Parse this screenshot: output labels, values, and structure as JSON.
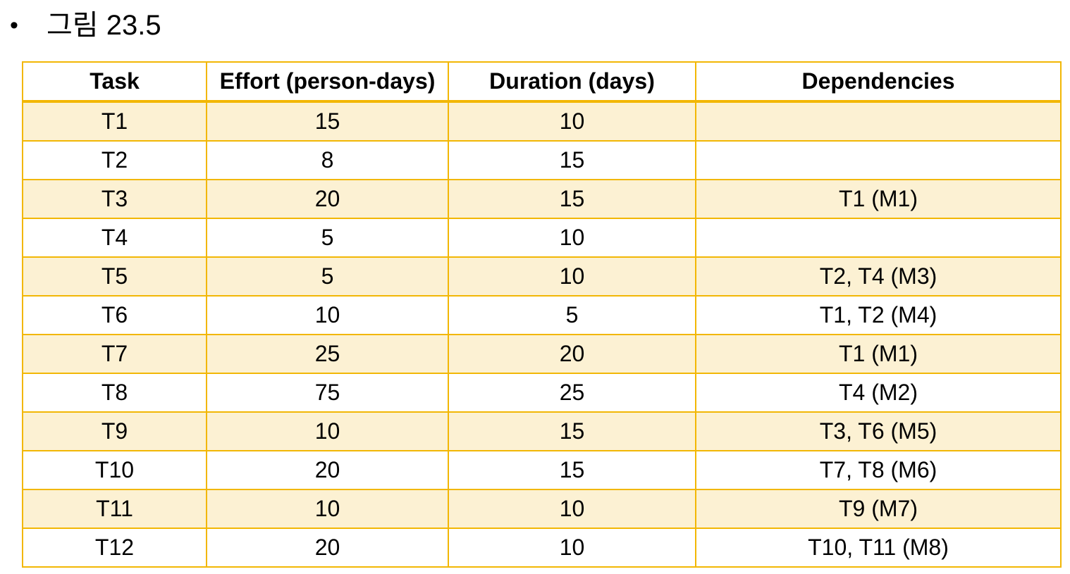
{
  "heading": {
    "bullet": "•",
    "title": "그림 23.5"
  },
  "table": {
    "headers": {
      "task": "Task",
      "effort": "Effort (person-days)",
      "duration": "Duration (days)",
      "dependencies": "Dependencies"
    },
    "rows": [
      {
        "task": "T1",
        "effort": "15",
        "duration": "10",
        "dependencies": ""
      },
      {
        "task": "T2",
        "effort": "8",
        "duration": "15",
        "dependencies": ""
      },
      {
        "task": "T3",
        "effort": "20",
        "duration": "15",
        "dependencies": "T1 (M1)"
      },
      {
        "task": "T4",
        "effort": "5",
        "duration": "10",
        "dependencies": ""
      },
      {
        "task": "T5",
        "effort": "5",
        "duration": "10",
        "dependencies": "T2, T4 (M3)"
      },
      {
        "task": "T6",
        "effort": "10",
        "duration": "5",
        "dependencies": "T1, T2 (M4)"
      },
      {
        "task": "T7",
        "effort": "25",
        "duration": "20",
        "dependencies": "T1 (M1)"
      },
      {
        "task": "T8",
        "effort": "75",
        "duration": "25",
        "dependencies": "T4 (M2)"
      },
      {
        "task": "T9",
        "effort": "10",
        "duration": "15",
        "dependencies": "T3, T6 (M5)"
      },
      {
        "task": "T10",
        "effort": "20",
        "duration": "15",
        "dependencies": "T7, T8 (M6)"
      },
      {
        "task": "T11",
        "effort": "10",
        "duration": "10",
        "dependencies": "T9 (M7)"
      },
      {
        "task": "T12",
        "effort": "20",
        "duration": "10",
        "dependencies": "T10, T11 (M8)"
      }
    ]
  },
  "colors": {
    "border": "#f2b705",
    "band": "#fcf1d3"
  }
}
